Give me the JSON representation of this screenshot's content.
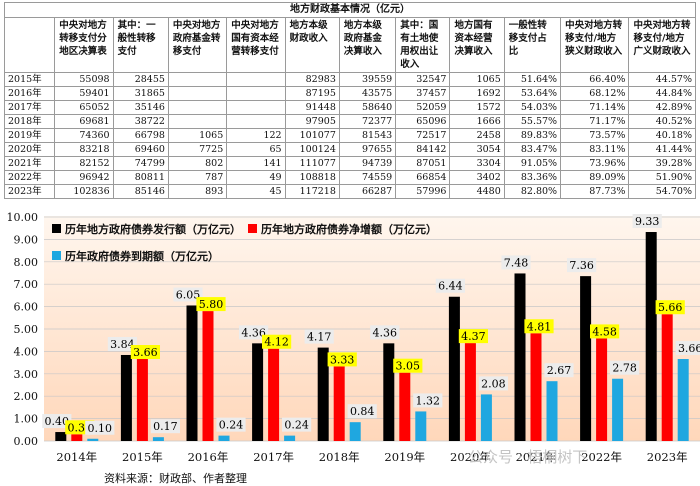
{
  "table": {
    "title": "地方财政基本情况（亿元）",
    "columns": [
      "",
      "中央对地方转移支付分地区决算表",
      "其中：一般性转移支付",
      "中央对地方政府基金转移支付",
      "中央对地方国有资本经营转移支付",
      "地方本级财政收入",
      "地方本级政府基金决算收入",
      "其中：国有土地使用权出让收入",
      "地方国有资本经营决算收入",
      "一般性转移支付占比",
      "中央对地方转移支付/地方狭义财政收入",
      "中央对地方转移支付/地方广义财政收入"
    ],
    "rows": [
      [
        "2015年",
        "55098",
        "28455",
        "",
        "",
        "82983",
        "39559",
        "32547",
        "1065",
        "51.64%",
        "66.40%",
        "44.57%"
      ],
      [
        "2016年",
        "59401",
        "31865",
        "",
        "",
        "87195",
        "43575",
        "37457",
        "1692",
        "53.64%",
        "68.12%",
        "44.84%"
      ],
      [
        "2017年",
        "65052",
        "35146",
        "",
        "",
        "91448",
        "58640",
        "52059",
        "1572",
        "54.03%",
        "71.14%",
        "42.89%"
      ],
      [
        "2018年",
        "69681",
        "38722",
        "",
        "",
        "97905",
        "72377",
        "65096",
        "1666",
        "55.57%",
        "71.17%",
        "40.52%"
      ],
      [
        "2019年",
        "74360",
        "66798",
        "1065",
        "122",
        "101077",
        "81543",
        "72517",
        "2458",
        "89.83%",
        "73.57%",
        "40.18%"
      ],
      [
        "2020年",
        "83218",
        "69460",
        "7725",
        "65",
        "100124",
        "97655",
        "84142",
        "3054",
        "83.47%",
        "83.11%",
        "41.44%"
      ],
      [
        "2021年",
        "82152",
        "74799",
        "802",
        "141",
        "111077",
        "94739",
        "87051",
        "3304",
        "91.05%",
        "73.96%",
        "39.28%"
      ],
      [
        "2022年",
        "96942",
        "80811",
        "787",
        "49",
        "108818",
        "74559",
        "66854",
        "3402",
        "83.36%",
        "89.09%",
        "51.90%"
      ],
      [
        "2023年",
        "102836",
        "85146",
        "893",
        "45",
        "117218",
        "66287",
        "57996",
        "4480",
        "82.80%",
        "87.73%",
        "54.70%"
      ]
    ]
  },
  "chart_data": {
    "type": "bar",
    "categories": [
      "2014年",
      "2015年",
      "2016年",
      "2017年",
      "2018年",
      "2019年",
      "2020年",
      "2021年",
      "2022年",
      "2023年"
    ],
    "series": [
      {
        "name": "历年地方政府债券发行额（万亿元）",
        "color": "#000000",
        "values": [
          0.4,
          3.84,
          6.05,
          4.36,
          4.17,
          4.36,
          6.44,
          7.48,
          7.36,
          9.33
        ],
        "labels": [
          "0.40",
          "3.84",
          "6.05",
          "4.36",
          "4.17",
          "4.36",
          "6.44",
          "7.48",
          "7.36",
          "9.33"
        ]
      },
      {
        "name": "历年地方政府债券净增额（万亿元）",
        "color": "#ff0000",
        "values": [
          0.3,
          3.66,
          5.8,
          4.12,
          3.33,
          3.05,
          4.37,
          4.81,
          4.58,
          5.66
        ],
        "labels": [
          "0.30",
          "3.66",
          "5.80",
          "4.12",
          "3.33",
          "3.05",
          "4.37",
          "4.81",
          "4.58",
          "5.66"
        ]
      },
      {
        "name": "历年政府债券到期额（万亿元）",
        "color": "#1fa7e0",
        "values": [
          0.1,
          0.17,
          0.24,
          0.24,
          0.84,
          1.32,
          2.08,
          2.67,
          2.78,
          3.66
        ],
        "labels": [
          "0.10",
          "0.17",
          "0.24",
          "0.24",
          "0.84",
          "1.32",
          "2.08",
          "2.67",
          "2.78",
          "3.66"
        ]
      }
    ],
    "yticks": [
      "0.00",
      "1.00",
      "2.00",
      "3.00",
      "4.00",
      "5.00",
      "6.00",
      "7.00",
      "8.00",
      "9.00",
      "10.00"
    ],
    "ylim": [
      0,
      10
    ],
    "label_highlight_color": "#ffff00",
    "label_box_color": "#ececec",
    "background_gradient": [
      "#fff6ee",
      "#ffd7ba"
    ],
    "title": "",
    "xlabel": "",
    "ylabel": ""
  },
  "source_note": "资料来源：财政部、作者整理",
  "watermark": "公众号 · 梧桐树下"
}
